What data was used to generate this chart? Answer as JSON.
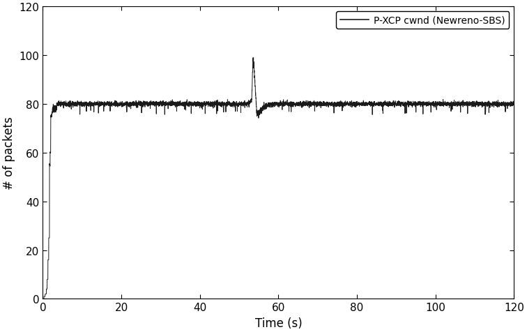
{
  "title": "",
  "xlabel": "Time (s)",
  "ylabel": "# of packets",
  "xlim": [
    0,
    120
  ],
  "ylim": [
    0,
    120
  ],
  "xticks": [
    0,
    20,
    40,
    60,
    80,
    100,
    120
  ],
  "yticks": [
    0,
    20,
    40,
    60,
    80,
    100,
    120
  ],
  "legend_label": "P-XCP cwnd (Newreno-SBS)",
  "line_color": "#1a1a1a",
  "line_width": 0.7,
  "background_color": "#ffffff",
  "noise_seed": 7,
  "steady_state": 80,
  "spike_time": 53.5,
  "spike_value": 98,
  "dt": 0.02
}
